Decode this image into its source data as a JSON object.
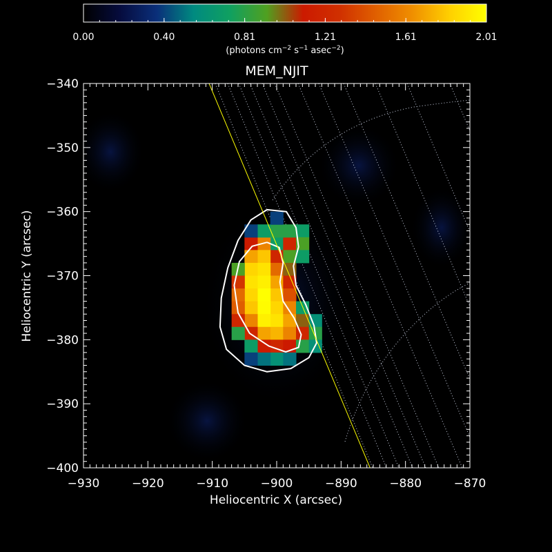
{
  "colorbar": {
    "ticks": [
      "0.00",
      "0.40",
      "0.81",
      "1.21",
      "1.61",
      "2.01"
    ],
    "min": 0.0,
    "max": 2.01,
    "unit_base": "(photons cm",
    "unit_exp1": "−2",
    "unit_mid": " s",
    "unit_exp2": "−1",
    "unit_mid2": " asec",
    "unit_exp3": "−2",
    "unit_end": ")",
    "colormap": [
      "#000000",
      "#060c3e",
      "#0a2f7a",
      "#008a80",
      "#10a060",
      "#50a020",
      "#cc1a00",
      "#d03000",
      "#e06000",
      "#f09000",
      "#ffd000",
      "#ffff00"
    ]
  },
  "chart_data": {
    "type": "heatmap",
    "title": "MEM_NJIT",
    "xlabel": "Heliocentric X (arcsec)",
    "ylabel": "Heliocentric Y (arcsec)",
    "xlim": [
      -930,
      -870
    ],
    "ylim": [
      -400,
      -340
    ],
    "x_ticks": [
      -930,
      -920,
      -910,
      -900,
      -890,
      -880,
      -870
    ],
    "y_ticks": [
      -340,
      -350,
      -360,
      -370,
      -380,
      -390,
      -400
    ],
    "x_tick_labels": [
      "−930",
      "−920",
      "−910",
      "−900",
      "−890",
      "−880",
      "−870"
    ],
    "y_tick_labels": [
      "−340",
      "−350",
      "−360",
      "−370",
      "−380",
      "−390",
      "−400"
    ],
    "pixel_size_arcsec": 2,
    "grid": "heliographic grid (dotted)",
    "source_columns": [
      {
        "x": -900,
        "cells": [
          [
            -365,
            0.7
          ],
          [
            -367,
            1.2
          ],
          [
            -369,
            1.5
          ],
          [
            -371,
            1.7
          ],
          [
            -373,
            1.8
          ],
          [
            -375,
            1.85
          ],
          [
            -377,
            1.9
          ],
          [
            -379,
            1.75
          ],
          [
            -381,
            1.2
          ],
          [
            -383,
            0.6
          ]
        ]
      },
      {
        "x": -902,
        "cells": [
          [
            -365,
            1.6
          ],
          [
            -367,
            1.8
          ],
          [
            -369,
            1.9
          ],
          [
            -371,
            1.95
          ],
          [
            -373,
            2.01
          ],
          [
            -375,
            2.0
          ],
          [
            -377,
            1.95
          ],
          [
            -379,
            1.7
          ],
          [
            -381,
            1.1
          ],
          [
            -383,
            0.5
          ]
        ]
      },
      {
        "x": -904,
        "cells": [
          [
            -365,
            1.1
          ],
          [
            -367,
            1.7
          ],
          [
            -369,
            1.85
          ],
          [
            -371,
            1.9
          ],
          [
            -373,
            1.85
          ],
          [
            -375,
            1.8
          ],
          [
            -377,
            1.6
          ],
          [
            -379,
            1.2
          ],
          [
            -381,
            0.7
          ]
        ]
      },
      {
        "x": -906,
        "cells": [
          [
            -369,
            0.9
          ],
          [
            -371,
            1.3
          ],
          [
            -373,
            1.5
          ],
          [
            -375,
            1.45
          ],
          [
            -377,
            1.2
          ],
          [
            -379,
            0.8
          ]
        ]
      },
      {
        "x": -898,
        "cells": [
          [
            -365,
            1.2
          ],
          [
            -367,
            0.9
          ],
          [
            -369,
            1.0
          ],
          [
            -371,
            1.2
          ],
          [
            -373,
            1.4
          ],
          [
            -375,
            1.6
          ],
          [
            -377,
            1.7
          ],
          [
            -379,
            1.6
          ],
          [
            -381,
            1.1
          ]
        ]
      },
      {
        "x": -896,
        "cells": [
          [
            -363,
            0.7
          ],
          [
            -365,
            0.9
          ],
          [
            -367,
            0.7
          ],
          [
            -375,
            0.7
          ],
          [
            -377,
            1.0
          ],
          [
            -379,
            1.2
          ],
          [
            -381,
            0.8
          ]
        ]
      },
      {
        "x": -894,
        "cells": [
          [
            -377,
            0.6
          ],
          [
            -379,
            0.8
          ],
          [
            -381,
            0.6
          ]
        ]
      },
      {
        "x": -900,
        "cells": [
          [
            -363,
            0.8
          ],
          [
            -361,
            0.4
          ]
        ]
      },
      {
        "x": -902,
        "cells": [
          [
            -363,
            0.7
          ]
        ]
      },
      {
        "x": -904,
        "cells": [
          [
            -363,
            0.4
          ],
          [
            -383,
            0.4
          ]
        ]
      },
      {
        "x": -898,
        "cells": [
          [
            -363,
            0.8
          ],
          [
            -383,
            0.5
          ]
        ]
      }
    ],
    "contours": [
      {
        "level": "outer",
        "color": "#ffffff",
        "points": [
          [
            -901.5,
            -359.7
          ],
          [
            -898.5,
            -360.0
          ],
          [
            -897.0,
            -362.5
          ],
          [
            -896.6,
            -365.5
          ],
          [
            -897.4,
            -368.5
          ],
          [
            -897.0,
            -371.5
          ],
          [
            -895.5,
            -374.5
          ],
          [
            -894.2,
            -377.8
          ],
          [
            -893.8,
            -380.5
          ],
          [
            -895.0,
            -382.8
          ],
          [
            -897.8,
            -384.5
          ],
          [
            -901.5,
            -385.0
          ],
          [
            -905.0,
            -384.0
          ],
          [
            -907.8,
            -381.5
          ],
          [
            -908.8,
            -378.0
          ],
          [
            -908.6,
            -373.5
          ],
          [
            -907.6,
            -368.8
          ],
          [
            -906.0,
            -364.5
          ],
          [
            -904.0,
            -361.3
          ],
          [
            -901.5,
            -359.7
          ]
        ]
      },
      {
        "level": "inner",
        "color": "#ffffff",
        "points": [
          [
            -901.5,
            -364.8
          ],
          [
            -899.6,
            -365.6
          ],
          [
            -899.0,
            -368.0
          ],
          [
            -899.5,
            -371.0
          ],
          [
            -899.0,
            -374.0
          ],
          [
            -897.3,
            -376.6
          ],
          [
            -896.2,
            -379.2
          ],
          [
            -896.6,
            -381.2
          ],
          [
            -898.6,
            -381.9
          ],
          [
            -901.2,
            -381.0
          ],
          [
            -904.2,
            -379.0
          ],
          [
            -906.0,
            -375.8
          ],
          [
            -906.6,
            -371.5
          ],
          [
            -905.8,
            -367.8
          ],
          [
            -903.8,
            -365.4
          ],
          [
            -901.5,
            -364.8
          ]
        ]
      }
    ],
    "limb_line": {
      "color": "#ffff00",
      "from": [
        -910.5,
        -340
      ],
      "to": [
        -885.5,
        -400
      ]
    }
  }
}
